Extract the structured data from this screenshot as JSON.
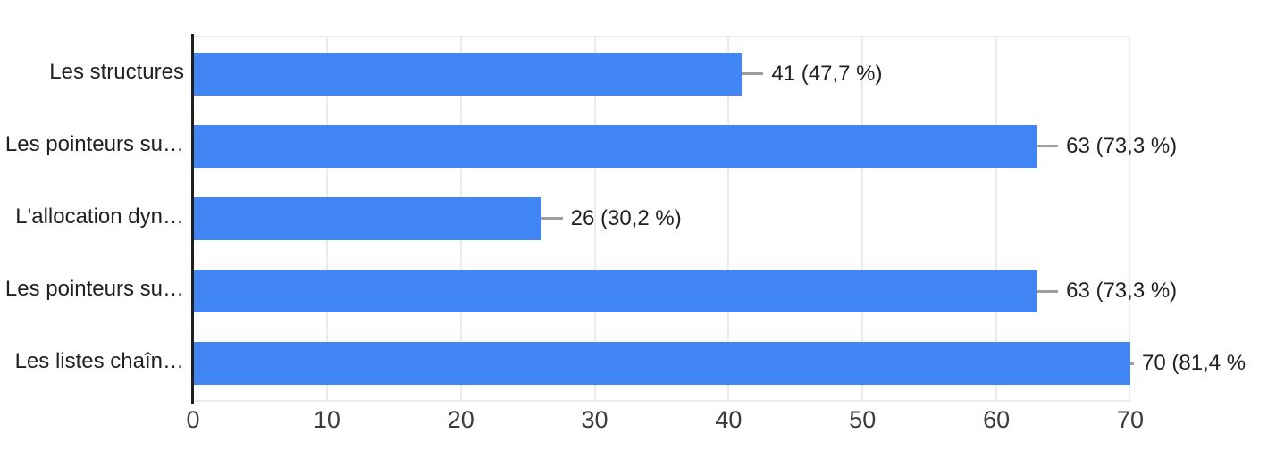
{
  "chart_data": {
    "type": "bar",
    "orientation": "horizontal",
    "title": "",
    "xlabel": "",
    "ylabel": "",
    "categories": [
      "Les structures",
      "Les pointeurs su…",
      "L'allocation dyn…",
      "Les pointeurs su…",
      "Les listes chaîn…"
    ],
    "values": [
      41,
      63,
      26,
      63,
      70
    ],
    "percentages": [
      47.7,
      73.3,
      30.2,
      73.3,
      81.4
    ],
    "value_labels": [
      "41 (47,7 %)",
      "63 (73,3 %)",
      "26 (30,2 %)",
      "63 (73,3 %)",
      "70 (81,4 %"
    ],
    "x_ticks": [
      "0",
      "10",
      "20",
      "30",
      "40",
      "50",
      "60",
      "70"
    ],
    "xlim": [
      0,
      70
    ],
    "grid": true,
    "legend_position": "none"
  },
  "colors": {
    "bar": "#4285f4",
    "gridline": "#ebebeb",
    "baseline": "#1f1f1f",
    "leader_line": "#9e9e9e",
    "label_text": "#212121",
    "tick_text": "#3c3c3c",
    "background": "#ffffff"
  }
}
